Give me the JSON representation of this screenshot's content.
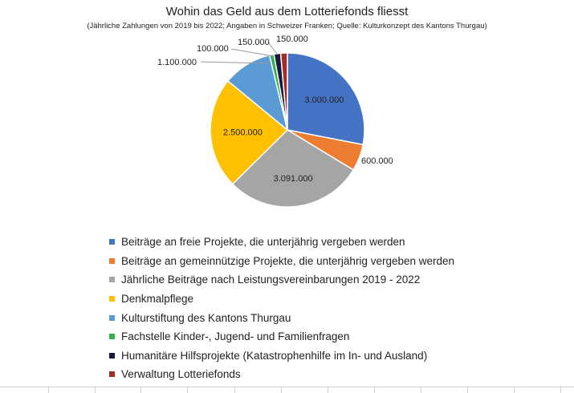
{
  "chart_data": {
    "type": "pie",
    "title": "Wohin das Geld aus dem Lotteriefonds fliesst",
    "subtitle": "(Jährliche Zahlungen von 2019 bis 2022; Angaben in Schweizer Franken; Quelle: Kulturkonzept des Kantons Thurgau)",
    "legend_position": "bottom",
    "slices": [
      {
        "name": "Beiträge an freie Projekte, die unterjährig vergeben werden",
        "value": 3000000,
        "label": "3.000.000",
        "color": "#4472C4"
      },
      {
        "name": "Beiträge an gemeinnützige Projekte, die unterjährig vergeben werden",
        "value": 600000,
        "label": "600.000",
        "color": "#ED7D31"
      },
      {
        "name": "Jährliche Beiträge nach Leistungsvereinbarungen 2019 - 2022",
        "value": 3091000,
        "label": "3.091.000",
        "color": "#A5A5A5"
      },
      {
        "name": "Denkmalpflege",
        "value": 2500000,
        "label": "2.500.000",
        "color": "#FFC000"
      },
      {
        "name": "Kulturstiftung des Kantons Thurgau",
        "value": 1100000,
        "label": "1.100.000",
        "color": "#5B9BD5"
      },
      {
        "name": "Fachstelle Kinder-, Jugend- und Familienfragen",
        "value": 100000,
        "label": "100.000",
        "color": "#2DB34A"
      },
      {
        "name": "Humanitäre Hilfsprojekte (Katastrophenhilfe im In- und Ausland)",
        "value": 150000,
        "label": "150.000",
        "color": "#1A1A3A"
      },
      {
        "name": "Verwaltung Lotteriefonds",
        "value": 150000,
        "label": "150.000",
        "color": "#A52A2A"
      }
    ]
  }
}
